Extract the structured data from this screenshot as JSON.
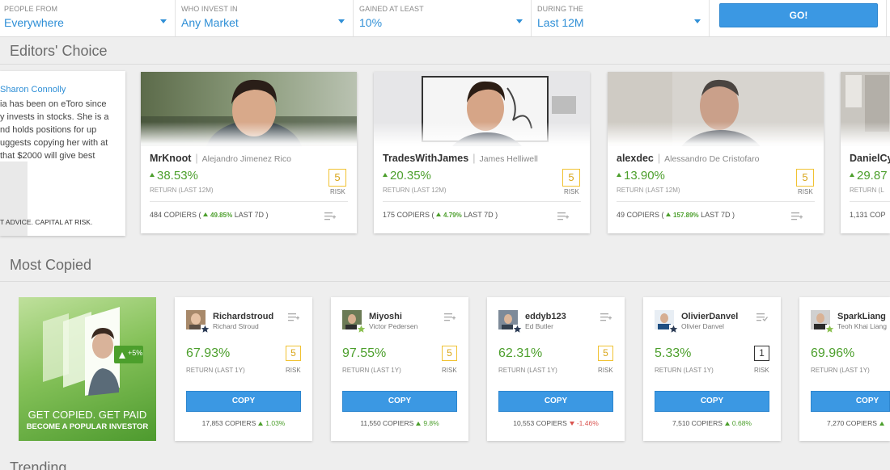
{
  "filters": {
    "people_from": {
      "label": "PEOPLE FROM",
      "value": "Everywhere"
    },
    "invest_in": {
      "label": "WHO INVEST IN",
      "value": "Any Market"
    },
    "gained": {
      "label": "GAINED AT LEAST",
      "value": "10%"
    },
    "during": {
      "label": "DURING THE",
      "value": "Last 12M"
    },
    "go_label": "GO!"
  },
  "editors_choice": {
    "title": "Editors' Choice",
    "intro": {
      "name": "Sharon Connolly",
      "lines": [
        "ia has been on eToro since",
        "y invests in stocks. She is a",
        "nd holds positions for up",
        "uggests copying her with at",
        "that $2000 will give best"
      ],
      "footer": "T ADVICE. CAPITAL AT RISK."
    },
    "cards": [
      {
        "username": "MrKnoot",
        "realname": "Alejandro Jimenez Rico",
        "return": "38.53%",
        "return_label": "RETURN (LAST 12M)",
        "risk": "5",
        "risk_label": "RISK",
        "copiers": "484 COPIERS (",
        "copiers_pct": "49.85%",
        "copiers_tail": " LAST 7D )"
      },
      {
        "username": "TradesWithJames",
        "realname": "James Helliwell",
        "return": "20.35%",
        "return_label": "RETURN (LAST 12M)",
        "risk": "5",
        "risk_label": "RISK",
        "copiers": "175 COPIERS (",
        "copiers_pct": "4.79%",
        "copiers_tail": " LAST 7D )"
      },
      {
        "username": "alexdec",
        "realname": "Alessandro De Cristofaro",
        "return": "13.90%",
        "return_label": "RETURN (LAST 12M)",
        "risk": "5",
        "risk_label": "RISK",
        "copiers": "49 COPIERS (",
        "copiers_pct": "157.89%",
        "copiers_tail": " LAST 7D )"
      },
      {
        "username": "DanielCy",
        "realname": "",
        "return": "29.87",
        "return_label": "RETURN (L",
        "risk": "",
        "risk_label": "",
        "copiers": "1,131 COP",
        "copiers_pct": "",
        "copiers_tail": ""
      }
    ]
  },
  "most_copied": {
    "title": "Most Copied",
    "promo": {
      "big": "GET COPIED. GET PAID",
      "small": "BECOME A POPULAR INVESTOR",
      "badge": "+5%"
    },
    "cards": [
      {
        "username": "Richardstroud",
        "realname": "Richard Stroud",
        "return": "67.93%",
        "return_label": "RETURN (LAST 1Y)",
        "risk": "5",
        "risk_label": "RISK",
        "copy_label": "COPY",
        "copiers": "17,853 COPIERS",
        "change": "1.03%",
        "direction": "up"
      },
      {
        "username": "Miyoshi",
        "realname": "Victor Pedersen",
        "return": "97.55%",
        "return_label": "RETURN (LAST 1Y)",
        "risk": "5",
        "risk_label": "RISK",
        "copy_label": "COPY",
        "copiers": "11,550 COPIERS",
        "change": "9.8%",
        "direction": "up"
      },
      {
        "username": "eddyb123",
        "realname": "Ed Butler",
        "return": "62.31%",
        "return_label": "RETURN (LAST 1Y)",
        "risk": "5",
        "risk_label": "RISK",
        "copy_label": "COPY",
        "copiers": "10,553 COPIERS",
        "change": "-1.46%",
        "direction": "down"
      },
      {
        "username": "OlivierDanvel",
        "realname": "Olivier Danvel",
        "return": "5.33%",
        "return_label": "RETURN (LAST 1Y)",
        "risk": "1",
        "risk_label": "RISK",
        "copy_label": "COPY",
        "copiers": "7,510 COPIERS",
        "change": "0.68%",
        "direction": "up"
      },
      {
        "username": "SparkLiang",
        "realname": "Teoh Khai Liang",
        "return": "69.96%",
        "return_label": "RETURN (LAST 1Y)",
        "risk": "",
        "risk_label": "",
        "copy_label": "COPY",
        "copiers": "7,270 COPIERS",
        "change": "",
        "direction": "up"
      }
    ]
  },
  "trending": {
    "title": "Trending"
  },
  "colors": {
    "accent": "#3b98e3",
    "positive": "#4c9f2c",
    "negative": "#d9534f",
    "risk_border": "#f1c232",
    "risk_low": "#333333"
  }
}
